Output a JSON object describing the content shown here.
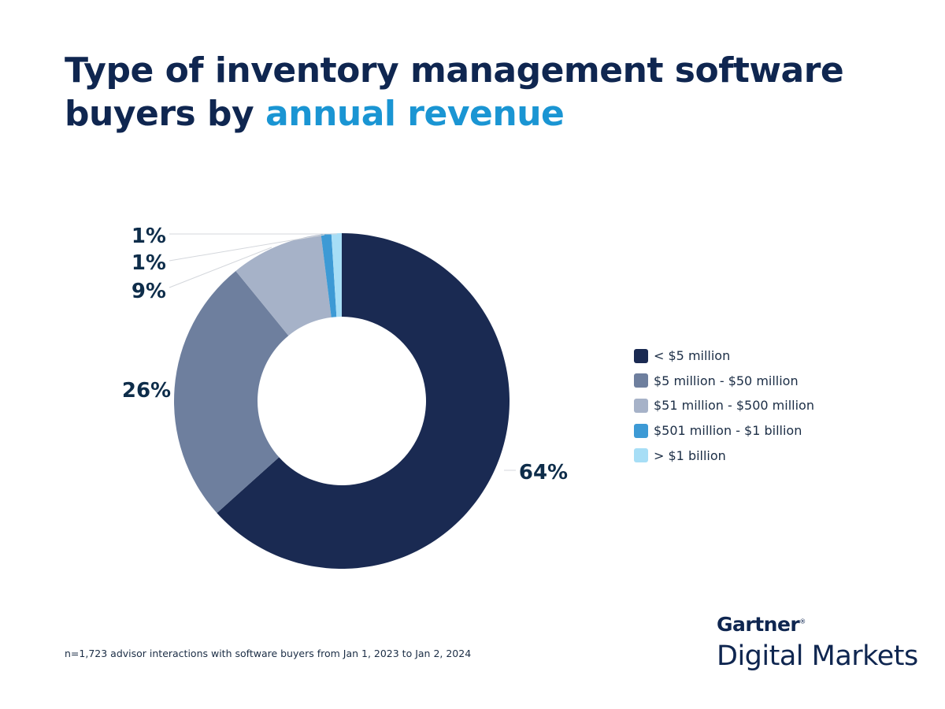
{
  "chart_data": {
    "type": "pie",
    "donut": true,
    "title_parts": [
      "Type of inventory management software buyers by ",
      "annual revenue"
    ],
    "categories": [
      "< $5 million",
      "$5 million - $50 million",
      "$51 million - $500 million",
      "$501 million - $1 billion",
      "> $1 billion"
    ],
    "values": [
      64,
      26,
      9,
      1,
      1
    ],
    "data_labels": [
      "64%",
      "26%",
      "9%",
      "1%",
      "1%"
    ],
    "colors": [
      "#1a2a52",
      "#6e7f9e",
      "#a6b2c8",
      "#3d9ad5",
      "#a7def6"
    ],
    "legend_position": "right",
    "start": "top, clockwise"
  },
  "note": "n=1,723 advisor interactions with software buyers from Jan 1, 2023 to Jan 2, 2024",
  "logo": {
    "brand": "Gartner",
    "mark": "®",
    "product": "Digital Markets"
  }
}
